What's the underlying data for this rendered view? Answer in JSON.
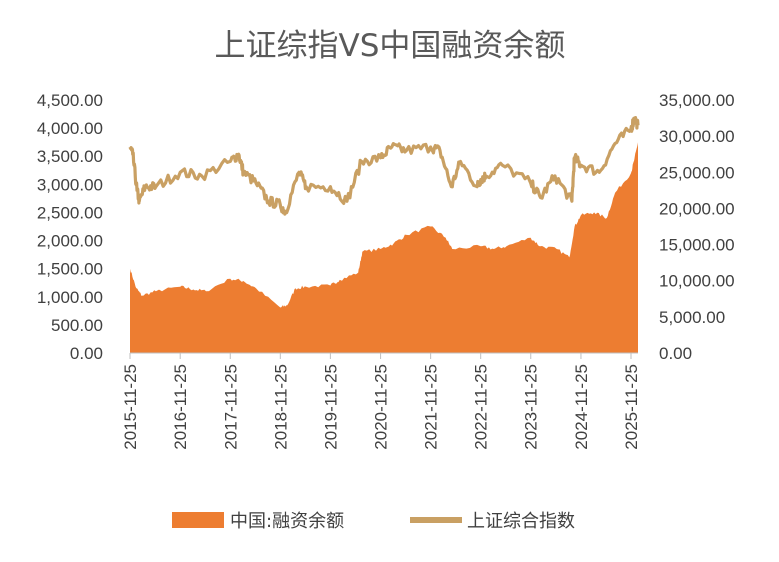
{
  "chart_data": {
    "type": "area",
    "title": "上证综指VS中国融资余额",
    "colors": {
      "margin": "#ED7D31",
      "index": "#C9A063",
      "axis": "#BFBFBF",
      "text": "#404040"
    },
    "x_tick_labels": [
      "2015-11-25",
      "2016-11-25",
      "2017-11-25",
      "2018-11-25",
      "2019-11-25",
      "2020-11-25",
      "2021-11-25",
      "2022-11-25",
      "2023-11-25",
      "2024-11-25",
      "2025-11-25"
    ],
    "x_range": [
      "2015-11-25",
      "2026-01-15"
    ],
    "y_left": {
      "ticks": [
        "0.00",
        "500.00",
        "1,000.00",
        "1,500.00",
        "2,000.00",
        "2,500.00",
        "3,000.00",
        "3,500.00",
        "4,000.00",
        "4,500.00"
      ],
      "range": [
        0,
        4500
      ]
    },
    "y_right": {
      "ticks": [
        "0.00",
        "5,000.00",
        "10,000.00",
        "15,000.00",
        "20,000.00",
        "25,000.00",
        "30,000.00",
        "35,000.00"
      ],
      "range": [
        0,
        35000
      ]
    },
    "series": [
      {
        "name": "中国:融资余额",
        "type": "area",
        "axis": "left",
        "points": [
          [
            "2015-11-25",
            1500
          ],
          [
            "2016-01-10",
            1150
          ],
          [
            "2016-02-20",
            1020
          ],
          [
            "2016-06-01",
            1100
          ],
          [
            "2016-11-25",
            1180
          ],
          [
            "2017-03-01",
            1130
          ],
          [
            "2017-06-01",
            1100
          ],
          [
            "2017-11-25",
            1320
          ],
          [
            "2018-03-01",
            1280
          ],
          [
            "2018-06-01",
            1150
          ],
          [
            "2018-11-25",
            810
          ],
          [
            "2019-01-15",
            850
          ],
          [
            "2019-03-15",
            1150
          ],
          [
            "2019-06-01",
            1180
          ],
          [
            "2019-11-25",
            1200
          ],
          [
            "2020-02-01",
            1300
          ],
          [
            "2020-06-15",
            1430
          ],
          [
            "2020-07-15",
            1800
          ],
          [
            "2020-11-25",
            1850
          ],
          [
            "2021-03-01",
            1950
          ],
          [
            "2021-06-01",
            2100
          ],
          [
            "2021-11-25",
            2250
          ],
          [
            "2022-03-15",
            2050
          ],
          [
            "2022-05-01",
            1850
          ],
          [
            "2022-11-25",
            1900
          ],
          [
            "2023-03-01",
            1850
          ],
          [
            "2023-06-01",
            1900
          ],
          [
            "2023-11-25",
            2050
          ],
          [
            "2024-02-01",
            1900
          ],
          [
            "2024-06-01",
            1850
          ],
          [
            "2024-09-01",
            1700
          ],
          [
            "2024-10-10",
            2250
          ],
          [
            "2024-11-25",
            2450
          ],
          [
            "2025-03-01",
            2500
          ],
          [
            "2025-06-01",
            2400
          ],
          [
            "2025-08-01",
            2850
          ],
          [
            "2025-11-25",
            3200
          ],
          [
            "2025-12-20",
            3450
          ],
          [
            "2026-01-15",
            3750
          ]
        ]
      },
      {
        "name": "上证综合指数",
        "type": "line",
        "axis": "right",
        "points": [
          [
            "2015-11-25",
            28500
          ],
          [
            "2015-12-15",
            27500
          ],
          [
            "2016-01-15",
            22500
          ],
          [
            "2016-02-01",
            21000
          ],
          [
            "2016-03-15",
            23000
          ],
          [
            "2016-06-01",
            23000
          ],
          [
            "2016-11-25",
            25000
          ],
          [
            "2017-05-01",
            24500
          ],
          [
            "2017-11-25",
            26500
          ],
          [
            "2018-01-25",
            27500
          ],
          [
            "2018-03-01",
            25000
          ],
          [
            "2018-06-01",
            23500
          ],
          [
            "2018-09-01",
            21000
          ],
          [
            "2018-11-25",
            20500
          ],
          [
            "2019-01-01",
            19500
          ],
          [
            "2019-04-10",
            25000
          ],
          [
            "2019-06-01",
            23000
          ],
          [
            "2019-11-25",
            23000
          ],
          [
            "2020-03-25",
            21000
          ],
          [
            "2020-07-10",
            26500
          ],
          [
            "2020-11-25",
            27000
          ],
          [
            "2021-02-15",
            28500
          ],
          [
            "2021-06-01",
            28000
          ],
          [
            "2021-11-25",
            28500
          ],
          [
            "2022-02-01",
            28000
          ],
          [
            "2022-04-25",
            23000
          ],
          [
            "2022-07-01",
            26500
          ],
          [
            "2022-10-30",
            23000
          ],
          [
            "2022-11-25",
            24000
          ],
          [
            "2023-01-01",
            24500
          ],
          [
            "2023-05-01",
            26000
          ],
          [
            "2023-11-25",
            23500
          ],
          [
            "2024-02-05",
            21500
          ],
          [
            "2024-05-20",
            24500
          ],
          [
            "2024-09-20",
            21000
          ],
          [
            "2024-10-08",
            27000
          ],
          [
            "2024-11-25",
            26000
          ],
          [
            "2025-04-08",
            25000
          ],
          [
            "2025-08-01",
            29000
          ],
          [
            "2025-11-25",
            31000
          ],
          [
            "2025-12-20",
            32500
          ],
          [
            "2026-01-15",
            31500
          ]
        ]
      }
    ],
    "legend": {
      "position": "bottom"
    }
  }
}
